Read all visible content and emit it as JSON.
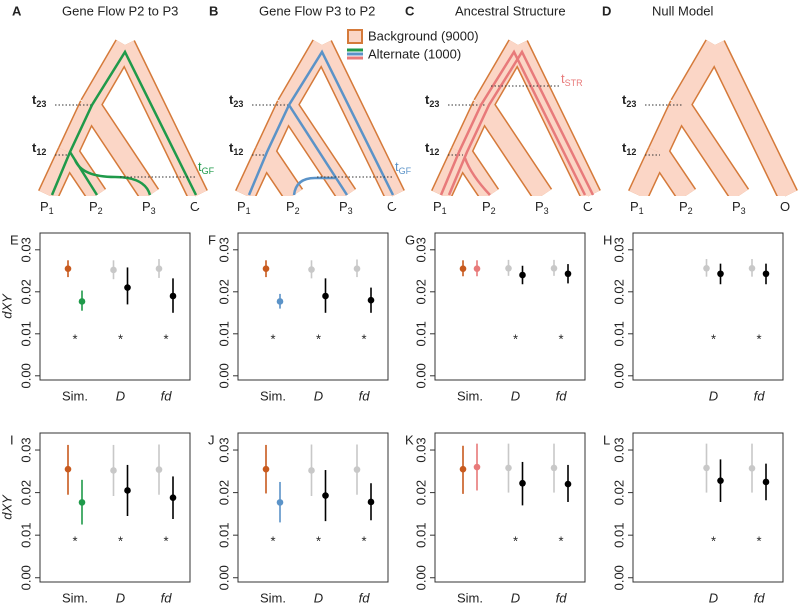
{
  "trees": [
    {
      "letter": "A",
      "title": "Gene Flow P2 to P3",
      "gene_color": "#1f9a4a",
      "event": {
        "base": "t",
        "sub": "GF"
      }
    },
    {
      "letter": "B",
      "title": "Gene Flow P3 to P2",
      "gene_color": "#5b93c8",
      "event": {
        "base": "t",
        "sub": "GF"
      }
    },
    {
      "letter": "C",
      "title": "Ancestral Structure",
      "gene_color": "#e87a7a",
      "event": {
        "base": "t",
        "sub": "STR"
      }
    },
    {
      "letter": "D",
      "title": "Null Model"
    }
  ],
  "times": [
    {
      "base": "t",
      "sub": "23"
    },
    {
      "base": "t",
      "sub": "12"
    }
  ],
  "leaves": [
    {
      "base": "P",
      "sub": "1"
    },
    {
      "base": "P",
      "sub": "2"
    },
    {
      "base": "P",
      "sub": "3"
    },
    {
      "base": "O"
    }
  ],
  "legend": {
    "background": "Background (9000)",
    "alternate": "Alternate (1000)",
    "background_color": "#fbd6c6",
    "outline_color": "#d57a3a"
  },
  "chart_data": [
    {
      "type": "pointrange",
      "title": "E",
      "ylabel": "dXY",
      "categories": [
        "Sim.",
        "D",
        "fd"
      ],
      "ylim": [
        -0.001,
        0.034
      ],
      "yticks": [
        {
          "value": 0,
          "label": "0.00"
        },
        {
          "value": 0.01,
          "label": "0.01"
        },
        {
          "value": 0.02,
          "label": "0.02"
        },
        {
          "value": 0.03,
          "label": "0.03"
        }
      ],
      "series": [
        {
          "colors": [
            "#c85a1e",
            "#c8c8c8",
            "#c8c8c8"
          ],
          "values": [
            0.0255,
            0.0252,
            0.0255
          ],
          "lower": [
            0.0235,
            0.023,
            0.0233
          ],
          "upper": [
            0.0275,
            0.0275,
            0.0278
          ]
        },
        {
          "colors": [
            "#1f9a4a",
            "#000000",
            "#000000"
          ],
          "values": [
            0.0177,
            0.021,
            0.019
          ],
          "lower": [
            0.0155,
            0.017,
            0.015
          ],
          "upper": [
            0.0203,
            0.0258,
            0.0232
          ]
        }
      ],
      "stars": [
        "*",
        "*",
        "*"
      ]
    },
    {
      "type": "pointrange",
      "title": "F",
      "categories": [
        "Sim.",
        "D",
        "fd"
      ],
      "ylim": [
        -0.001,
        0.034
      ],
      "yticks": [
        {
          "value": 0,
          "label": "0.00"
        },
        {
          "value": 0.01,
          "label": "0.01"
        },
        {
          "value": 0.02,
          "label": "0.02"
        },
        {
          "value": 0.03,
          "label": "0.03"
        }
      ],
      "series": [
        {
          "colors": [
            "#c85a1e",
            "#c8c8c8",
            "#c8c8c8"
          ],
          "values": [
            0.0255,
            0.0253,
            0.0255
          ],
          "lower": [
            0.0235,
            0.0232,
            0.0235
          ],
          "upper": [
            0.0275,
            0.0275,
            0.0277
          ]
        },
        {
          "colors": [
            "#5b93c8",
            "#000000",
            "#000000"
          ],
          "values": [
            0.0177,
            0.019,
            0.018
          ],
          "lower": [
            0.016,
            0.015,
            0.015
          ],
          "upper": [
            0.0195,
            0.0232,
            0.021
          ]
        }
      ],
      "stars": [
        "*",
        "*",
        "*"
      ]
    },
    {
      "type": "pointrange",
      "title": "G",
      "categories": [
        "Sim.",
        "D",
        "fd"
      ],
      "ylim": [
        -0.001,
        0.034
      ],
      "yticks": [
        {
          "value": 0,
          "label": "0.00"
        },
        {
          "value": 0.01,
          "label": "0.01"
        },
        {
          "value": 0.02,
          "label": "0.02"
        },
        {
          "value": 0.03,
          "label": "0.03"
        }
      ],
      "series": [
        {
          "colors": [
            "#c85a1e",
            "#c8c8c8",
            "#c8c8c8"
          ],
          "values": [
            0.0255,
            0.0256,
            0.0256
          ],
          "lower": [
            0.0237,
            0.0238,
            0.0238
          ],
          "upper": [
            0.0275,
            0.0276,
            0.0276
          ]
        },
        {
          "colors": [
            "#e87a7a",
            "#000000",
            "#000000"
          ],
          "values": [
            0.0255,
            0.024,
            0.0243
          ],
          "lower": [
            0.0237,
            0.0218,
            0.022
          ],
          "upper": [
            0.0275,
            0.0262,
            0.0266
          ]
        }
      ],
      "stars": [
        null,
        "*",
        "*"
      ]
    },
    {
      "type": "pointrange",
      "title": "H",
      "categories": [
        null,
        "D",
        "fd"
      ],
      "ylim": [
        -0.001,
        0.034
      ],
      "yticks": [
        {
          "value": 0,
          "label": "0.00"
        },
        {
          "value": 0.01,
          "label": "0.01"
        },
        {
          "value": 0.02,
          "label": "0.02"
        },
        {
          "value": 0.03,
          "label": "0.03"
        }
      ],
      "series": [
        {
          "colors": [
            null,
            "#c8c8c8",
            "#c8c8c8"
          ],
          "values": [
            null,
            0.0256,
            0.0256
          ],
          "lower": [
            null,
            0.0236,
            0.0236
          ],
          "upper": [
            null,
            0.0278,
            0.0278
          ]
        },
        {
          "colors": [
            null,
            "#000000",
            "#000000"
          ],
          "values": [
            null,
            0.0243,
            0.0243
          ],
          "lower": [
            null,
            0.0218,
            0.0218
          ],
          "upper": [
            null,
            0.0267,
            0.0267
          ]
        }
      ],
      "stars": [
        null,
        "*",
        "*"
      ]
    },
    {
      "type": "pointrange",
      "title": "I",
      "ylabel": "dXY",
      "categories": [
        "Sim.",
        "D",
        "fd"
      ],
      "ylim": [
        -0.001,
        0.034
      ],
      "yticks": [
        {
          "value": 0,
          "label": "0.00"
        },
        {
          "value": 0.01,
          "label": "0.01"
        },
        {
          "value": 0.02,
          "label": "0.02"
        },
        {
          "value": 0.03,
          "label": "0.03"
        }
      ],
      "series": [
        {
          "colors": [
            "#c85a1e",
            "#c8c8c8",
            "#c8c8c8"
          ],
          "values": [
            0.0255,
            0.0252,
            0.0254
          ],
          "lower": [
            0.0195,
            0.0192,
            0.0195
          ],
          "upper": [
            0.0312,
            0.0312,
            0.0313
          ]
        },
        {
          "colors": [
            "#1f9a4a",
            "#000000",
            "#000000"
          ],
          "values": [
            0.0177,
            0.0205,
            0.0188
          ],
          "lower": [
            0.0125,
            0.0145,
            0.0138
          ],
          "upper": [
            0.023,
            0.0265,
            0.0238
          ]
        }
      ],
      "stars": [
        "*",
        "*",
        "*"
      ]
    },
    {
      "type": "pointrange",
      "title": "J",
      "categories": [
        "Sim.",
        "D",
        "fd"
      ],
      "ylim": [
        -0.001,
        0.034
      ],
      "yticks": [
        {
          "value": 0,
          "label": "0.00"
        },
        {
          "value": 0.01,
          "label": "0.01"
        },
        {
          "value": 0.02,
          "label": "0.02"
        },
        {
          "value": 0.03,
          "label": "0.03"
        }
      ],
      "series": [
        {
          "colors": [
            "#c85a1e",
            "#c8c8c8",
            "#c8c8c8"
          ],
          "values": [
            0.0255,
            0.0252,
            0.0254
          ],
          "lower": [
            0.0198,
            0.0192,
            0.0195
          ],
          "upper": [
            0.0312,
            0.0313,
            0.0313
          ]
        },
        {
          "colors": [
            "#5b93c8",
            "#000000",
            "#000000"
          ],
          "values": [
            0.0177,
            0.0193,
            0.0178
          ],
          "lower": [
            0.013,
            0.0133,
            0.0135
          ],
          "upper": [
            0.0225,
            0.0253,
            0.0222
          ]
        }
      ],
      "stars": [
        "*",
        "*",
        "*"
      ]
    },
    {
      "type": "pointrange",
      "title": "K",
      "categories": [
        "Sim.",
        "D",
        "fd"
      ],
      "ylim": [
        -0.001,
        0.034
      ],
      "yticks": [
        {
          "value": 0,
          "label": "0.00"
        },
        {
          "value": 0.01,
          "label": "0.01"
        },
        {
          "value": 0.02,
          "label": "0.02"
        },
        {
          "value": 0.03,
          "label": "0.03"
        }
      ],
      "series": [
        {
          "colors": [
            "#c85a1e",
            "#c8c8c8",
            "#c8c8c8"
          ],
          "values": [
            0.0255,
            0.0258,
            0.0258
          ],
          "lower": [
            0.0197,
            0.02,
            0.02
          ],
          "upper": [
            0.031,
            0.0315,
            0.0315
          ]
        },
        {
          "colors": [
            "#e87a7a",
            "#000000",
            "#000000"
          ],
          "values": [
            0.026,
            0.0222,
            0.022
          ],
          "lower": [
            0.0205,
            0.017,
            0.0178
          ],
          "upper": [
            0.0315,
            0.0272,
            0.0265
          ]
        }
      ],
      "stars": [
        null,
        "*",
        "*"
      ]
    },
    {
      "type": "pointrange",
      "title": "L",
      "categories": [
        null,
        "D",
        "fd"
      ],
      "ylim": [
        -0.001,
        0.034
      ],
      "yticks": [
        {
          "value": 0,
          "label": "0.00"
        },
        {
          "value": 0.01,
          "label": "0.01"
        },
        {
          "value": 0.02,
          "label": "0.02"
        },
        {
          "value": 0.03,
          "label": "0.03"
        }
      ],
      "series": [
        {
          "colors": [
            null,
            "#c8c8c8",
            "#c8c8c8"
          ],
          "values": [
            null,
            0.0258,
            0.0257
          ],
          "lower": [
            null,
            0.02,
            0.02
          ],
          "upper": [
            null,
            0.0315,
            0.0315
          ]
        },
        {
          "colors": [
            null,
            "#000000",
            "#000000"
          ],
          "values": [
            null,
            0.0228,
            0.0225
          ],
          "lower": [
            null,
            0.0178,
            0.0182
          ],
          "upper": [
            null,
            0.0278,
            0.0268
          ]
        }
      ],
      "stars": [
        null,
        "*",
        "*"
      ]
    }
  ]
}
